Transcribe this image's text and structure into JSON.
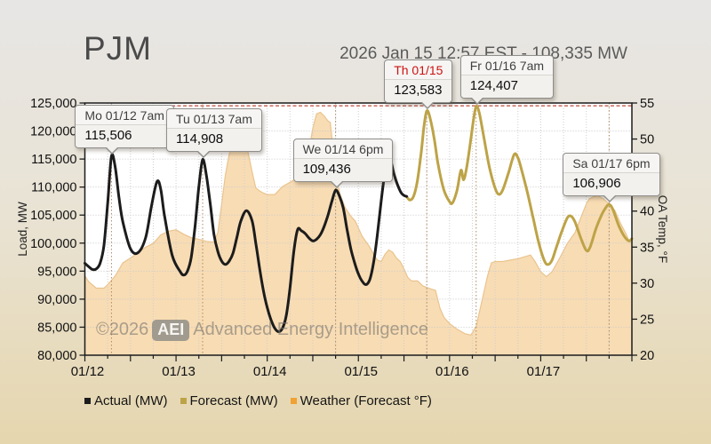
{
  "header": {
    "logo": "PJM",
    "title": "2026 Jan 15 12:57 EST - 108,335 MW"
  },
  "watermark": {
    "copyright": "©2026",
    "badge": "AEI",
    "name": "Advanced Energy Intelligence"
  },
  "legend": [
    {
      "label": "Actual (MW)",
      "color": "#1c1c1c"
    },
    {
      "label": "Forecast (MW)",
      "color": "#bda347"
    },
    {
      "label": "Weather (Forecast °F)",
      "color": "#f0a232"
    }
  ],
  "chart_data": {
    "type": "line",
    "title": "PJM load: actual vs forecast with forecast temperature",
    "x_unit": "hours since 2026-01-12 00:00 EST",
    "x_axis": {
      "labels": [
        "01/12",
        "01/13",
        "01/14",
        "01/15",
        "01/16",
        "01/17"
      ],
      "day_hours": [
        0,
        24,
        48,
        72,
        96,
        120
      ],
      "range_hours": [
        0,
        144
      ],
      "minor_tick_hours": 6,
      "major_tick_hours": 12
    },
    "y_left": {
      "label": "Load, MW",
      "min": 80000,
      "max": 125000,
      "step": 5000,
      "tick_values": [
        80000,
        85000,
        90000,
        95000,
        100000,
        105000,
        110000,
        115000,
        120000,
        125000
      ]
    },
    "y_right": {
      "label": "OA Temp, °F",
      "min": 20,
      "max": 55,
      "step": 5,
      "tick_values": [
        20,
        25,
        30,
        35,
        40,
        45,
        50,
        55
      ]
    },
    "grid": {
      "h_dotted": true,
      "v_dotted_every_hours": 6
    },
    "reference_line": {
      "axis": "left",
      "value": 124500,
      "color": "#c04a3a",
      "style": "dashed"
    },
    "series": [
      {
        "name": "Actual (MW)",
        "axis": "left",
        "kind": "line",
        "color": "#1c1c1c",
        "width": 3,
        "points": [
          [
            0,
            96400
          ],
          [
            1,
            95800
          ],
          [
            2,
            95300
          ],
          [
            3,
            95400
          ],
          [
            4,
            96400
          ],
          [
            5,
            99500
          ],
          [
            6,
            107000
          ],
          [
            7,
            115506
          ],
          [
            8,
            113500
          ],
          [
            9,
            108000
          ],
          [
            10,
            103800
          ],
          [
            12,
            99000
          ],
          [
            14,
            98300
          ],
          [
            16,
            101000
          ],
          [
            17.5,
            106500
          ],
          [
            19,
            111000
          ],
          [
            20,
            109500
          ],
          [
            21,
            104700
          ],
          [
            23,
            97800
          ],
          [
            25,
            95000
          ],
          [
            26,
            94300
          ],
          [
            27,
            95000
          ],
          [
            28,
            97500
          ],
          [
            29,
            103000
          ],
          [
            30,
            110000
          ],
          [
            31,
            114908
          ],
          [
            32,
            112000
          ],
          [
            33,
            107000
          ],
          [
            34,
            101500
          ],
          [
            35,
            98500
          ],
          [
            36,
            96800
          ],
          [
            37,
            96200
          ],
          [
            38,
            96800
          ],
          [
            39,
            98200
          ],
          [
            40,
            101000
          ],
          [
            41,
            103800
          ],
          [
            42.5,
            105800
          ],
          [
            44,
            104000
          ],
          [
            45,
            100000
          ],
          [
            46,
            95500
          ],
          [
            47,
            91500
          ],
          [
            48,
            88500
          ],
          [
            49,
            86300
          ],
          [
            50,
            84800
          ],
          [
            51,
            84200
          ],
          [
            52,
            84800
          ],
          [
            53,
            87000
          ],
          [
            54,
            92000
          ],
          [
            55,
            98500
          ],
          [
            56,
            102400
          ],
          [
            57,
            102200
          ],
          [
            58,
            101700
          ],
          [
            59,
            100900
          ],
          [
            60,
            100400
          ],
          [
            61,
            100700
          ],
          [
            62,
            101500
          ],
          [
            63,
            103000
          ],
          [
            64,
            105000
          ],
          [
            65,
            107400
          ],
          [
            66,
            109436
          ],
          [
            67,
            108400
          ],
          [
            68,
            106300
          ],
          [
            69,
            102500
          ],
          [
            70,
            99000
          ],
          [
            71,
            96500
          ],
          [
            72,
            94500
          ],
          [
            73,
            93200
          ],
          [
            74,
            92600
          ],
          [
            75,
            93500
          ],
          [
            76,
            96500
          ],
          [
            77,
            101500
          ],
          [
            78,
            107500
          ],
          [
            79,
            113000
          ],
          [
            79.7,
            115800
          ],
          [
            80.5,
            114800
          ],
          [
            81.5,
            112000
          ],
          [
            83,
            109300
          ],
          [
            84,
            108500
          ],
          [
            84.7,
            108335
          ]
        ]
      },
      {
        "name": "Forecast (MW)",
        "axis": "left",
        "kind": "line",
        "color": "#bda347",
        "width": 3,
        "points": [
          [
            84.7,
            108335
          ],
          [
            85.5,
            107700
          ],
          [
            86.5,
            108300
          ],
          [
            87.5,
            111000
          ],
          [
            88.5,
            116000
          ],
          [
            89.3,
            121000
          ],
          [
            90,
            123583
          ],
          [
            90.8,
            122500
          ],
          [
            92,
            118500
          ],
          [
            93,
            114000
          ],
          [
            94.5,
            109500
          ],
          [
            96,
            107400
          ],
          [
            96.8,
            107200
          ],
          [
            98,
            109500
          ],
          [
            99,
            113000
          ],
          [
            99.7,
            111300
          ],
          [
            100.5,
            113500
          ],
          [
            101.5,
            118000
          ],
          [
            102.3,
            122000
          ],
          [
            103,
            124407
          ],
          [
            103.8,
            123300
          ],
          [
            105,
            119000
          ],
          [
            106.5,
            113500
          ],
          [
            108,
            109800
          ],
          [
            109,
            108700
          ],
          [
            110,
            109500
          ],
          [
            111.5,
            112500
          ],
          [
            113,
            115800
          ],
          [
            114,
            115200
          ],
          [
            115,
            113000
          ],
          [
            116.5,
            109000
          ],
          [
            118,
            104500
          ],
          [
            119.5,
            100000
          ],
          [
            121,
            96800
          ],
          [
            122,
            96200
          ],
          [
            123,
            97000
          ],
          [
            124,
            99000
          ],
          [
            125.5,
            102000
          ],
          [
            127,
            104500
          ],
          [
            128,
            104800
          ],
          [
            129,
            103800
          ],
          [
            130.5,
            101000
          ],
          [
            132,
            98700
          ],
          [
            133,
            99300
          ],
          [
            134.5,
            102500
          ],
          [
            136,
            105000
          ],
          [
            137,
            106200
          ],
          [
            138,
            106906
          ],
          [
            139,
            106000
          ],
          [
            140.5,
            103200
          ],
          [
            142,
            101200
          ],
          [
            143.2,
            100400
          ],
          [
            144,
            100800
          ]
        ]
      },
      {
        "name": "Weather (Forecast °F)",
        "axis": "right",
        "kind": "area",
        "fill": "#f8dcb4",
        "edge": "#eac48e",
        "points": [
          [
            0,
            31
          ],
          [
            1,
            30.2
          ],
          [
            3,
            29.3
          ],
          [
            5,
            29.3
          ],
          [
            6,
            29.8
          ],
          [
            8,
            31
          ],
          [
            10,
            32.8
          ],
          [
            12,
            33.5
          ],
          [
            14,
            34.2
          ],
          [
            16,
            35
          ],
          [
            18,
            35.5
          ],
          [
            20,
            36.7
          ],
          [
            22,
            37.2
          ],
          [
            24,
            37.4
          ],
          [
            26,
            36.8
          ],
          [
            28,
            36.3
          ],
          [
            30,
            36.1
          ],
          [
            32,
            35.8
          ],
          [
            34,
            35.7
          ],
          [
            35,
            37
          ],
          [
            36,
            41
          ],
          [
            37,
            45
          ],
          [
            38,
            47.9
          ],
          [
            39,
            49
          ],
          [
            40,
            50.2
          ],
          [
            41,
            51
          ],
          [
            42,
            51.3
          ],
          [
            43,
            48
          ],
          [
            44,
            45.5
          ],
          [
            45,
            43.2
          ],
          [
            46,
            42.8
          ],
          [
            47,
            42.5
          ],
          [
            48,
            42.3
          ],
          [
            50,
            42.3
          ],
          [
            52,
            43.4
          ],
          [
            54,
            44
          ],
          [
            55,
            44.3
          ],
          [
            56,
            44.5
          ],
          [
            57,
            45
          ],
          [
            58,
            46
          ],
          [
            59,
            48.5
          ],
          [
            60,
            51.5
          ],
          [
            61,
            53.5
          ],
          [
            62,
            53.7
          ],
          [
            63,
            53.2
          ],
          [
            64,
            52.5
          ],
          [
            64.6,
            52.3
          ],
          [
            65.5,
            48
          ],
          [
            66.5,
            44
          ],
          [
            67.2,
            42.3
          ],
          [
            68.5,
            40.5
          ],
          [
            70,
            39.3
          ],
          [
            71.2,
            38.6
          ],
          [
            73,
            36.5
          ],
          [
            75,
            35
          ],
          [
            76,
            34
          ],
          [
            77,
            33.2
          ],
          [
            78,
            33
          ],
          [
            79,
            34
          ],
          [
            80,
            34.6
          ],
          [
            81,
            34.3
          ],
          [
            82,
            33.5
          ],
          [
            83,
            33
          ],
          [
            84,
            32
          ],
          [
            85,
            30.8
          ],
          [
            86,
            30.3
          ],
          [
            87.6,
            30.3
          ],
          [
            89,
            29.6
          ],
          [
            91,
            29.2
          ],
          [
            92.3,
            29
          ],
          [
            93.5,
            26.5
          ],
          [
            94.6,
            25.2
          ],
          [
            96,
            24.4
          ],
          [
            98,
            23.6
          ],
          [
            100,
            23
          ],
          [
            101.6,
            22.8
          ],
          [
            103,
            24
          ],
          [
            104.5,
            27.5
          ],
          [
            106,
            31
          ],
          [
            107,
            32.8
          ],
          [
            108,
            33
          ],
          [
            110,
            33
          ],
          [
            112,
            33.2
          ],
          [
            114,
            33.4
          ],
          [
            116,
            33.7
          ],
          [
            117.3,
            33.9
          ],
          [
            118.5,
            33
          ],
          [
            120,
            31.6
          ],
          [
            121.5,
            30.9
          ],
          [
            123,
            31.6
          ],
          [
            125,
            33.5
          ],
          [
            127,
            35.5
          ],
          [
            129,
            37
          ],
          [
            130.5,
            39
          ],
          [
            132,
            41
          ],
          [
            132.8,
            41.7
          ],
          [
            134,
            42
          ],
          [
            135.1,
            42.1
          ],
          [
            136.5,
            41.7
          ],
          [
            138,
            41
          ],
          [
            139.5,
            40.1
          ],
          [
            141,
            38.3
          ],
          [
            142.5,
            36.8
          ],
          [
            143.3,
            35.8
          ],
          [
            144,
            35.5
          ]
        ]
      }
    ],
    "annotations": [
      {
        "title": "Mo 01/12 7am",
        "value": "115,506",
        "anchor_h": 7,
        "anchor_mw": 115506,
        "highlight": false
      },
      {
        "title": "Tu 01/13 7am",
        "value": "114,908",
        "anchor_h": 31,
        "anchor_mw": 114908,
        "highlight": false
      },
      {
        "title": "We 01/14 6pm",
        "value": "109,436",
        "anchor_h": 66,
        "anchor_mw": 109436,
        "highlight": false
      },
      {
        "title": "Th 01/15",
        "value": "123,583",
        "anchor_h": 90,
        "anchor_mw": 123583,
        "highlight": true
      },
      {
        "title": "Fr 01/16 7am",
        "value": "124,407",
        "anchor_h": 103,
        "anchor_mw": 124407,
        "highlight": false
      },
      {
        "title": "Sa 01/17 6pm",
        "value": "106,906",
        "anchor_h": 138,
        "anchor_mw": 106906,
        "highlight": false
      }
    ]
  }
}
